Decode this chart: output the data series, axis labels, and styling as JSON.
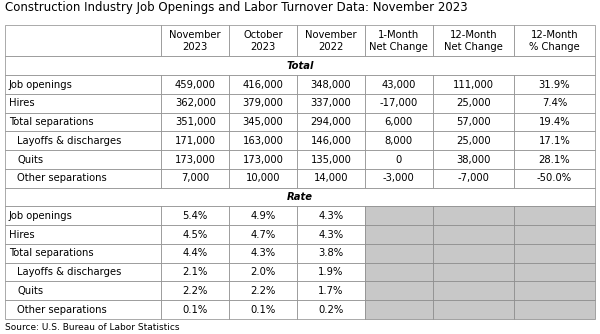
{
  "title": "Construction Industry Job Openings and Labor Turnover Data: November 2023",
  "source": "Source: U.S. Bureau of Labor Statistics",
  "col_headers": [
    "November\n2023",
    "October\n2023",
    "November\n2022",
    "1-Month\nNet Change",
    "12-Month\nNet Change",
    "12-Month\n% Change"
  ],
  "section_total": "Total",
  "section_rate": "Rate",
  "total_rows": [
    [
      "Job openings",
      "459,000",
      "416,000",
      "348,000",
      "43,000",
      "111,000",
      "31.9%"
    ],
    [
      "Hires",
      "362,000",
      "379,000",
      "337,000",
      "-17,000",
      "25,000",
      "7.4%"
    ],
    [
      "Total separations",
      "351,000",
      "345,000",
      "294,000",
      "6,000",
      "57,000",
      "19.4%"
    ],
    [
      "  Layoffs & discharges",
      "171,000",
      "163,000",
      "146,000",
      "8,000",
      "25,000",
      "17.1%"
    ],
    [
      "  Quits",
      "173,000",
      "173,000",
      "135,000",
      "0",
      "38,000",
      "28.1%"
    ],
    [
      "  Other separations",
      "7,000",
      "10,000",
      "14,000",
      "-3,000",
      "-7,000",
      "-50.0%"
    ]
  ],
  "rate_rows": [
    [
      "Job openings",
      "5.4%",
      "4.9%",
      "4.3%",
      "",
      "",
      ""
    ],
    [
      "Hires",
      "4.5%",
      "4.7%",
      "4.3%",
      "",
      "",
      ""
    ],
    [
      "Total separations",
      "4.4%",
      "4.3%",
      "3.8%",
      "",
      "",
      ""
    ],
    [
      "  Layoffs & discharges",
      "2.1%",
      "2.0%",
      "1.9%",
      "",
      "",
      ""
    ],
    [
      "  Quits",
      "2.2%",
      "2.2%",
      "1.7%",
      "",
      "",
      ""
    ],
    [
      "  Other separations",
      "0.1%",
      "0.1%",
      "0.2%",
      "",
      "",
      ""
    ]
  ],
  "gray_color": "#C8C8C8",
  "white_color": "#FFFFFF",
  "border_color": "#888888",
  "title_fontsize": 8.5,
  "header_fontsize": 7.2,
  "cell_fontsize": 7.2,
  "source_fontsize": 6.5,
  "figw": 6.0,
  "figh": 3.34
}
